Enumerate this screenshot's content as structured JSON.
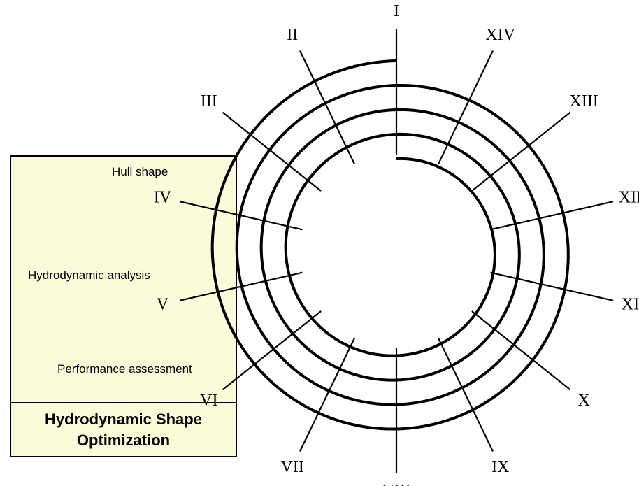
{
  "panel": {
    "title": "Hydrodynamic Shape Optimization",
    "labels": {
      "hull_shape": "Hull shape",
      "hydrodynamic_analysis": "Hydrodynamic analysis",
      "performance_assessment": "Performance assessment"
    }
  },
  "spiral": {
    "turns": 4,
    "direction": "clockwise, outward from center"
  },
  "spokes": [
    "I",
    "II",
    "III",
    "IV",
    "V",
    "VI",
    "VII",
    "VIII",
    "IX",
    "X",
    "XI",
    "XII",
    "XIII",
    "XIV"
  ],
  "colors": {
    "panel_fill": "#fbfbd9",
    "line": "#000000"
  }
}
